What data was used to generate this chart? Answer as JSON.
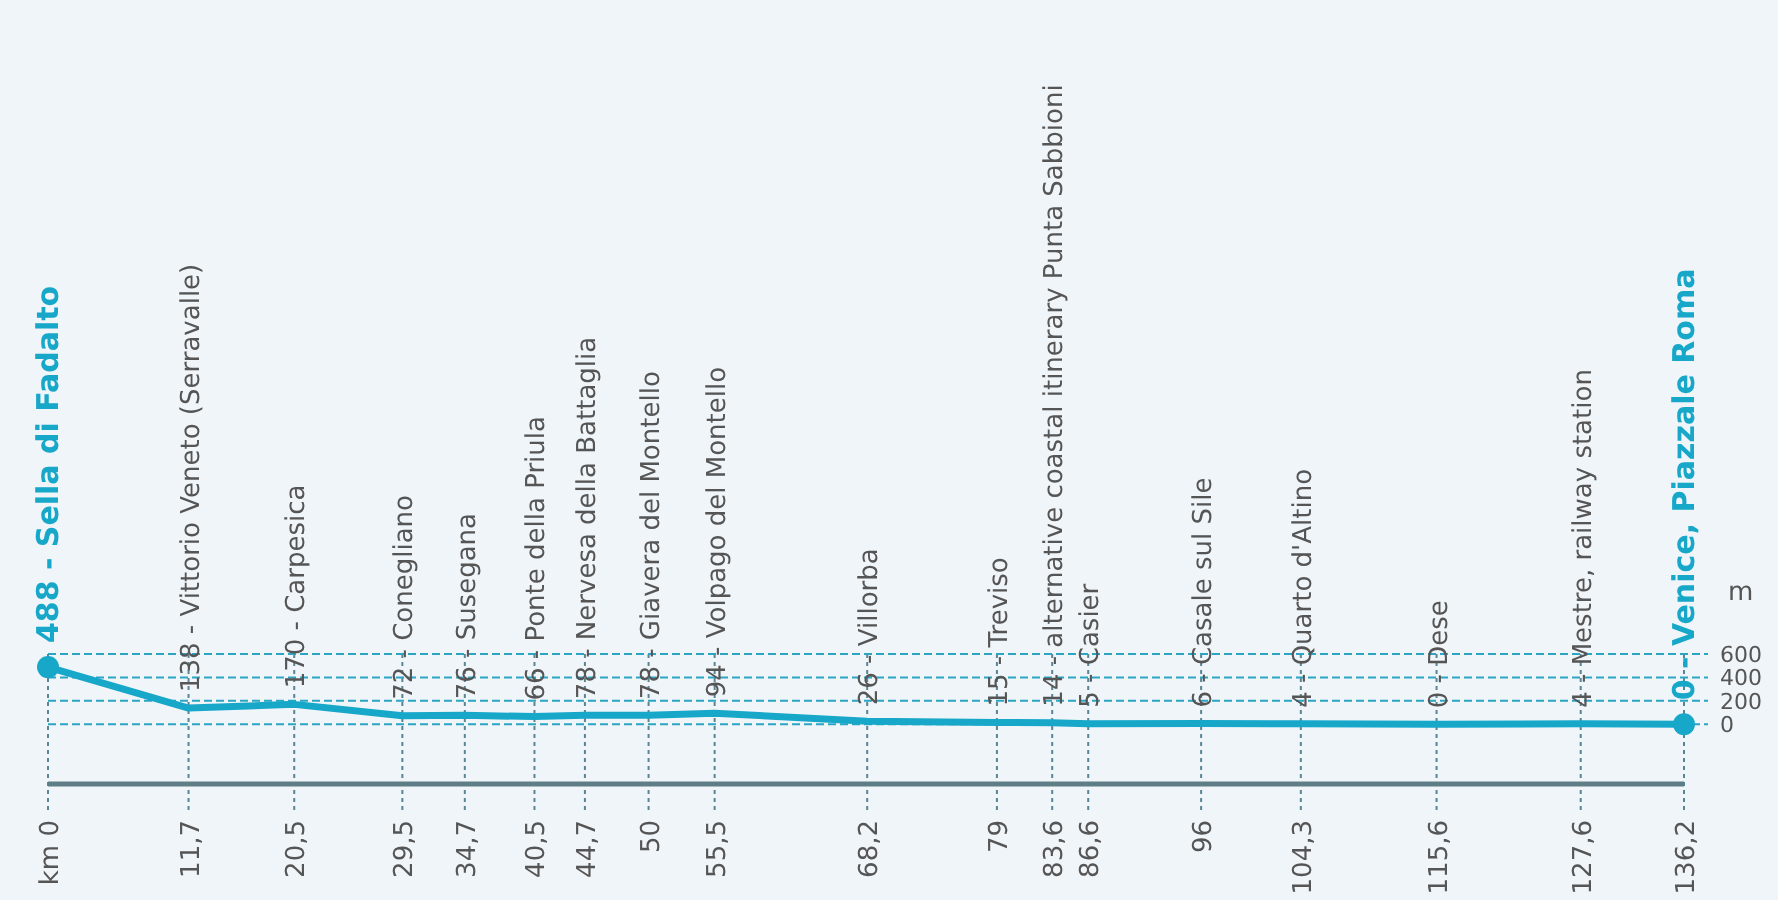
{
  "chart_data": {
    "type": "line",
    "ylabel": "m",
    "x": [
      0,
      11.7,
      20.5,
      29.5,
      34.7,
      40.5,
      44.7,
      50,
      55.5,
      68.2,
      79,
      83.6,
      86.6,
      96,
      104.3,
      115.6,
      127.6,
      136.2
    ],
    "series": [
      {
        "color": "#17a7c9",
        "values": [
          488,
          138,
          170,
          72,
          76,
          66,
          78,
          78,
          94,
          26,
          15,
          14,
          5,
          6,
          4,
          0,
          4,
          0
        ]
      },
      {
        "type": "scatter",
        "color": "#17a7c9",
        "x": [
          0,
          136.2
        ],
        "values": [
          488,
          0
        ]
      }
    ],
    "xlim": [
      0,
      136.2
    ],
    "xticks": [
      {
        "value": 0,
        "label": "km 0"
      },
      {
        "value": 11.7,
        "label": "11,7"
      },
      {
        "value": 20.5,
        "label": "20,5"
      },
      {
        "value": 29.5,
        "label": "29,5"
      },
      {
        "value": 34.7,
        "label": "34,7"
      },
      {
        "value": 40.5,
        "label": "40,5"
      },
      {
        "value": 44.7,
        "label": "44,7"
      },
      50,
      {
        "value": 55.5,
        "label": "55,5"
      },
      {
        "value": 68.2,
        "label": "68,2"
      },
      79,
      {
        "value": 83.6,
        "label": "83,6"
      },
      {
        "value": 86.6,
        "label": "86,6"
      },
      96,
      {
        "value": 104.3,
        "label": "104,3"
      },
      {
        "value": 115.6,
        "label": "115,6"
      },
      {
        "value": 127.6,
        "label": "127,6"
      },
      {
        "value": 136.2,
        "label": "136,2"
      }
    ],
    "ylim": [
      -510,
      600
    ],
    "yticks": [
      0,
      200,
      400,
      600
    ],
    "grid": true,
    "annotations": [
      {
        "text": "488 - Sella di Fadalto",
        "x": 0,
        "y": 488
      },
      {
        "text": "138 - Vittorio Veneto (Serravalle)",
        "x": 11.7,
        "y": 138
      },
      {
        "text": "170 - Carpesica",
        "x": 20.5,
        "y": 170
      },
      {
        "text": "72 - Conegliano",
        "x": 29.5,
        "y": 72
      },
      {
        "text": "76 - Susegana",
        "x": 34.7,
        "y": 76
      },
      {
        "text": "66 - Ponte della Priula",
        "x": 40.5,
        "y": 66
      },
      {
        "text": "78 - Nervesa della Battaglia",
        "x": 44.7,
        "y": 78
      },
      {
        "text": "78 - Giavera del Montello",
        "x": 50,
        "y": 78
      },
      {
        "text": "94 - Volpago del Montello",
        "x": 55.5,
        "y": 94
      },
      {
        "text": "26 - Villorba",
        "x": 68.2,
        "y": 26
      },
      {
        "text": "15 - Treviso",
        "x": 79,
        "y": 15
      },
      {
        "text": "14 - alternative coastal itinerary Punta Sabbioni",
        "x": 83.6,
        "y": 14
      },
      {
        "text": "5 - Casier",
        "x": 86.6,
        "y": 5
      },
      {
        "text": "6 - Casale sul Sile",
        "x": 96,
        "y": 6
      },
      {
        "text": "4 - Quarto d'Altino",
        "x": 104.3,
        "y": 4
      },
      {
        "text": "0 - Dese",
        "x": 115.6,
        "y": 0
      },
      {
        "text": "4 - Mestre, railway station",
        "x": 127.6,
        "y": 4
      },
      {
        "text": "0 - Venice, Piazzale Roma",
        "x": 136.2,
        "y": 0
      }
    ]
  }
}
